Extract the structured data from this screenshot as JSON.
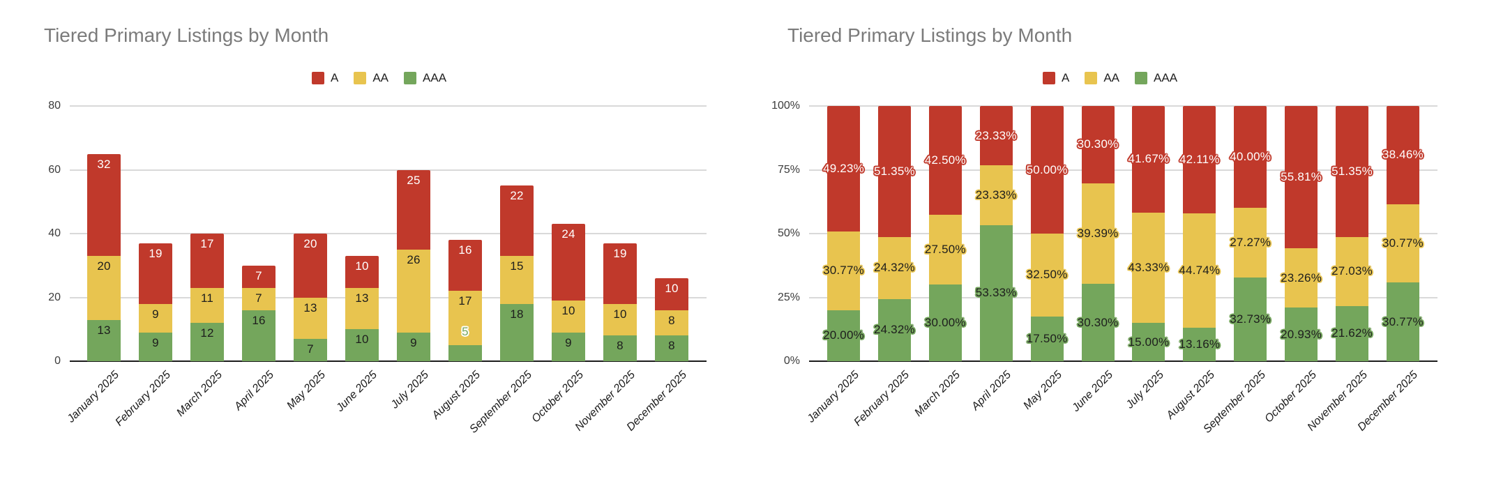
{
  "chart_data": [
    {
      "type": "bar",
      "stacked": true,
      "percent": false,
      "title": "Tiered Primary Listings by Month",
      "legend_position": "top",
      "legend_entries": [
        "A",
        "AA",
        "AAA"
      ],
      "grid": true,
      "xlabel": "",
      "ylabel": "",
      "ymax": 80,
      "yticks": [
        "0",
        "20",
        "40",
        "60",
        "80"
      ],
      "categories": [
        "January 2025",
        "February 2025",
        "March 2025",
        "April 2025",
        "May 2025",
        "June 2025",
        "July 2025",
        "August 2025",
        "September 2025",
        "October 2025",
        "November 2025",
        "December 2025"
      ],
      "series": [
        {
          "name": "AAA",
          "color": "#74a65c",
          "values": [
            13,
            9,
            12,
            16,
            7,
            10,
            9,
            5,
            18,
            9,
            8,
            8
          ]
        },
        {
          "name": "AA",
          "color": "#e8c44f",
          "values": [
            20,
            9,
            11,
            7,
            13,
            13,
            26,
            17,
            15,
            10,
            10,
            8
          ]
        },
        {
          "name": "A",
          "color": "#c0392b",
          "values": [
            32,
            19,
            17,
            7,
            20,
            10,
            25,
            16,
            22,
            24,
            19,
            10
          ]
        }
      ]
    },
    {
      "type": "bar",
      "stacked": true,
      "percent": true,
      "title": "Tiered Primary Listings by Month",
      "legend_position": "top",
      "legend_entries": [
        "A",
        "AA",
        "AAA"
      ],
      "grid": true,
      "xlabel": "",
      "ylabel": "",
      "ymax": 100,
      "yticks": [
        "0%",
        "25%",
        "50%",
        "75%",
        "100%"
      ],
      "categories": [
        "January 2025",
        "February 2025",
        "March 2025",
        "April 2025",
        "May 2025",
        "June 2025",
        "July 2025",
        "August 2025",
        "September 2025",
        "October 2025",
        "November 2025",
        "December 2025"
      ],
      "series": [
        {
          "name": "AAA",
          "color": "#74a65c",
          "values": [
            20.0,
            24.32,
            30.0,
            53.33,
            17.5,
            30.3,
            15.0,
            13.16,
            32.73,
            20.93,
            21.62,
            30.77
          ],
          "labels": [
            "20.00%",
            "24.32%",
            "30.00%",
            "53.33%",
            "17.50%",
            "30.30%",
            "15.00%",
            "13.16%",
            "32.73%",
            "20.93%",
            "21.62%",
            "30.77%"
          ]
        },
        {
          "name": "AA",
          "color": "#e8c44f",
          "values": [
            30.77,
            24.32,
            27.5,
            23.33,
            32.5,
            39.39,
            43.33,
            44.74,
            27.27,
            23.26,
            27.03,
            30.77
          ],
          "labels": [
            "30.77%",
            "24.32%",
            "27.50%",
            "23.33%",
            "32.50%",
            "39.39%",
            "43.33%",
            "44.74%",
            "27.27%",
            "23.26%",
            "27.03%",
            "30.77%"
          ]
        },
        {
          "name": "A",
          "color": "#c0392b",
          "values": [
            49.23,
            51.35,
            42.5,
            23.33,
            50.0,
            30.3,
            41.67,
            42.11,
            40.0,
            55.81,
            51.35,
            38.46
          ],
          "labels": [
            "49.23%",
            "51.35%",
            "42.50%",
            "23.33%",
            "50.00%",
            "30.30%",
            "41.67%",
            "42.11%",
            "40.00%",
            "55.81%",
            "51.35%",
            "38.46%"
          ]
        }
      ]
    }
  ],
  "colors": {
    "series_a": "#c0392b",
    "series_aa": "#e8c44f",
    "series_aaa": "#74a65c",
    "gridline": "#d9d9d9",
    "axis_baseline": "#1c1c1c",
    "title_text": "#7b7b7b",
    "background": "#ffffff"
  }
}
